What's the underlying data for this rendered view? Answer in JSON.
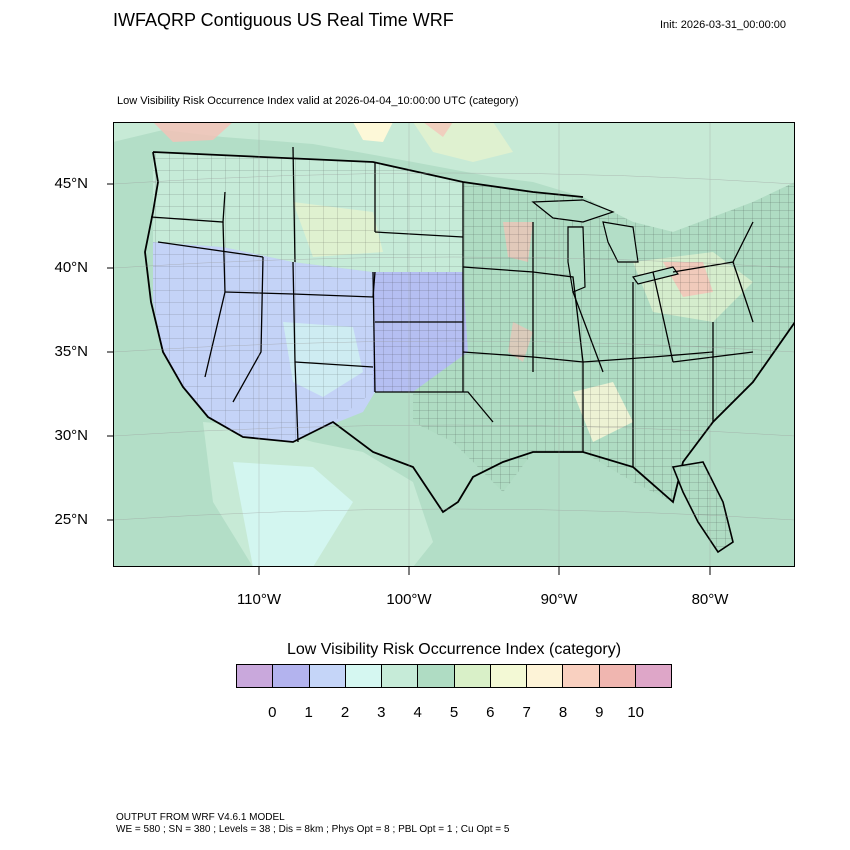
{
  "header": {
    "title": "IWFAQRP Contiguous US Real Time WRF",
    "init": "Init: 2026-03-31_00:00:00",
    "subtitle": "Low Visibility Risk Occurrence Index valid at 2026-04-04_10:00:00 UTC   (category)"
  },
  "map": {
    "lat_labels": [
      "45°N",
      "40°N",
      "35°N",
      "30°N",
      "25°N"
    ],
    "lon_labels": [
      "110°W",
      "100°W",
      "90°W",
      "80°W"
    ],
    "field_colors": {
      "ocean": "#b3dec7",
      "low_blue": "#c4d3f7",
      "blue2": "#b5bff2",
      "cyan": "#d3f6f0",
      "green": "#c2e8d4",
      "lightgreen": "#dff1d0",
      "cream": "#fdf8d8",
      "pink": "#f6c0b6",
      "border": "#000000"
    }
  },
  "legend": {
    "title": "Low Visibility Risk Occurrence Index  (category)",
    "labels": [
      "0",
      "1",
      "2",
      "3",
      "4",
      "5",
      "6",
      "7",
      "8",
      "9",
      "10"
    ],
    "colors": [
      "#c9a8dc",
      "#b3b3ee",
      "#c5d5f8",
      "#d5f7f1",
      "#c6ebd8",
      "#afdcc3",
      "#d9f0c8",
      "#f3f9d5",
      "#fdf3d7",
      "#f9d0c0",
      "#f0b6b0",
      "#dea6c8"
    ]
  },
  "footer": {
    "line1": "OUTPUT FROM WRF V4.6.1 MODEL",
    "line2": "WE = 580 ; SN = 380 ; Levels = 38 ; Dis = 8km ; Phys Opt = 8 ; PBL Opt = 1 ; Cu Opt = 5"
  }
}
